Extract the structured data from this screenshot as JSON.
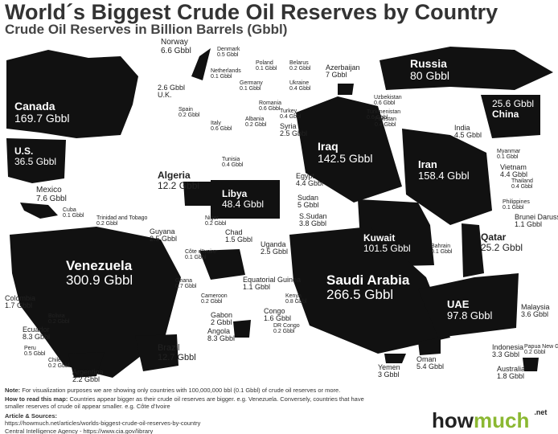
{
  "header": {
    "title": "World´s Biggest Crude Oil Reserves by Country",
    "subtitle": "Crude Oil Reserves in Billion Barrels (Gbbl)"
  },
  "countries": [
    {
      "name": "Canada",
      "reserve": "169.7 Gbbl"
    },
    {
      "name": "U.S.",
      "reserve": "36.5 Gbbl"
    },
    {
      "name": "Mexico",
      "reserve": "7.6 Gbbl"
    },
    {
      "name": "Cuba",
      "reserve": "0.1 Gbbl"
    },
    {
      "name": "Trinidad and Tobago",
      "reserve": "0.2 Gbbl"
    },
    {
      "name": "Guyana",
      "reserve": "2.5 Gbbl"
    },
    {
      "name": "Venezuela",
      "reserve": "300.9 Gbbl"
    },
    {
      "name": "Colombia",
      "reserve": "1.7 Gbbl"
    },
    {
      "name": "Bolivia",
      "reserve": "0.2 Gbbl"
    },
    {
      "name": "Ecuador",
      "reserve": "8.3 Gbbl"
    },
    {
      "name": "Peru",
      "reserve": "0.5 Gbbl"
    },
    {
      "name": "Chile",
      "reserve": "0.2 Gbbl"
    },
    {
      "name": "Argentina",
      "reserve": "2.2 Gbbl"
    },
    {
      "name": "Brazil",
      "reserve": "12.7 Gbbl"
    },
    {
      "name": "Norway",
      "reserve": "6.6 Gbbl"
    },
    {
      "name": "U.K.",
      "reserve": "2.6 Gbbl"
    },
    {
      "name": "Denmark",
      "reserve": "0.5 Gbbl"
    },
    {
      "name": "Netherlands",
      "reserve": "0.1 Gbbl"
    },
    {
      "name": "Poland",
      "reserve": "0.1 Gbbl"
    },
    {
      "name": "Belarus",
      "reserve": "0.2 Gbbl"
    },
    {
      "name": "Germany",
      "reserve": "0.1 Gbbl"
    },
    {
      "name": "Ukraine",
      "reserve": "0.4 Gbbl"
    },
    {
      "name": "Spain",
      "reserve": "0.2 Gbbl"
    },
    {
      "name": "Italy",
      "reserve": "0.6 Gbbl"
    },
    {
      "name": "Romania",
      "reserve": "0.6 Gbbl"
    },
    {
      "name": "Albania",
      "reserve": "0.2 Gbbl"
    },
    {
      "name": "Turkey",
      "reserve": "0.4 Gbbl"
    },
    {
      "name": "Syria",
      "reserve": "2.5 Gbbl"
    },
    {
      "name": "Azerbaijan",
      "reserve": "7 Gbbl"
    },
    {
      "name": "Russia",
      "reserve": "80 Gbbl"
    },
    {
      "name": "Uzbekistan",
      "reserve": "0.6 Gbbl"
    },
    {
      "name": "Turkmenistan",
      "reserve": "0.6 Gbbl"
    },
    {
      "name": "Pakistan",
      "reserve": "0.4 Gbbl"
    },
    {
      "name": "India",
      "reserve": "4.5 Gbbl"
    },
    {
      "name": "China",
      "reserve": "25.6 Gbbl"
    },
    {
      "name": "Iraq",
      "reserve": "142.5 Gbbl"
    },
    {
      "name": "Iran",
      "reserve": "158.4 Gbbl"
    },
    {
      "name": "Myanmar",
      "reserve": "0.1 Gbbl"
    },
    {
      "name": "Vietnam",
      "reserve": "4.4 Gbbl"
    },
    {
      "name": "Thailand",
      "reserve": "0.4 Gbbl"
    },
    {
      "name": "Philippines",
      "reserve": "0.1 Gbbl"
    },
    {
      "name": "Brunei Darussalam",
      "reserve": "1.1 Gbbl"
    },
    {
      "name": "Tunisia",
      "reserve": "0.4 Gbbl"
    },
    {
      "name": "Algeria",
      "reserve": "12.2 Gbbl"
    },
    {
      "name": "Egypt",
      "reserve": "4.4 Gbbl"
    },
    {
      "name": "Libya",
      "reserve": "48.4 Gbbl"
    },
    {
      "name": "Sudan",
      "reserve": "5 Gbbl"
    },
    {
      "name": "Niger",
      "reserve": "0.2 Gbbl"
    },
    {
      "name": "S.Sudan",
      "reserve": "3.8 Gbbl"
    },
    {
      "name": "Chad",
      "reserve": "1.5 Gbbl"
    },
    {
      "name": "Uganda",
      "reserve": "2.5 Gbbl"
    },
    {
      "name": "Côte d'Ivoire",
      "reserve": "0.1 Gbbl"
    },
    {
      "name": "Ghana",
      "reserve": "0.7 Gbbl"
    },
    {
      "name": "Equatorial Guinea",
      "reserve": "1.1 Gbbl"
    },
    {
      "name": "Cameroon",
      "reserve": "0.2 Gbbl"
    },
    {
      "name": "Kenya",
      "reserve": "0.8 Gbbl"
    },
    {
      "name": "Congo",
      "reserve": "1.6 Gbbl"
    },
    {
      "name": "Gabon",
      "reserve": "2 Gbbl"
    },
    {
      "name": "DR Congo",
      "reserve": "0.2 Gbbl"
    },
    {
      "name": "Angola",
      "reserve": "8.3 Gbbl"
    },
    {
      "name": "Kuwait",
      "reserve": "101.5 Gbbl"
    },
    {
      "name": "Bahrain",
      "reserve": "0.1 Gbbl"
    },
    {
      "name": "Qatar",
      "reserve": "25.2 Gbbl"
    },
    {
      "name": "Saudi Arabia",
      "reserve": "266.5 Gbbl"
    },
    {
      "name": "UAE",
      "reserve": "97.8 Gbbl"
    },
    {
      "name": "Malaysia",
      "reserve": "3.6 Gbbl"
    },
    {
      "name": "Indonesia",
      "reserve": "3.3 Gbbl"
    },
    {
      "name": "Papua New Guinea",
      "reserve": "0.2 Gbbl"
    },
    {
      "name": "Australia",
      "reserve": "1.8 Gbbl"
    },
    {
      "name": "Yemen",
      "reserve": "3 Gbbl"
    },
    {
      "name": "Oman",
      "reserve": "5.4 Gbbl"
    }
  ],
  "footer": {
    "note_label": "Note:",
    "note": "For visualization purposes we are showing only countries with 100,000,000 bbl (0.1 Gbbl) of crude oil reserves or more.",
    "howto_label": "How to read this map:",
    "howto": "Countries appear bigger as their crude oil reserves are bigger. e.g. Venezuela. Conversely, countries that have smaller reserves of crude oil appear smaller. e.g. Côte d'Ivoire",
    "sources_label": "Article & Sources:",
    "source_1": "https://howmuch.net/articles/worlds-biggest-crude-oil-reserves-by-country",
    "source_2": "Central Intelligence Agency - https://www.cia.gov/library",
    "logo_1": "how",
    "logo_2": "much",
    "logo_3": "net"
  }
}
